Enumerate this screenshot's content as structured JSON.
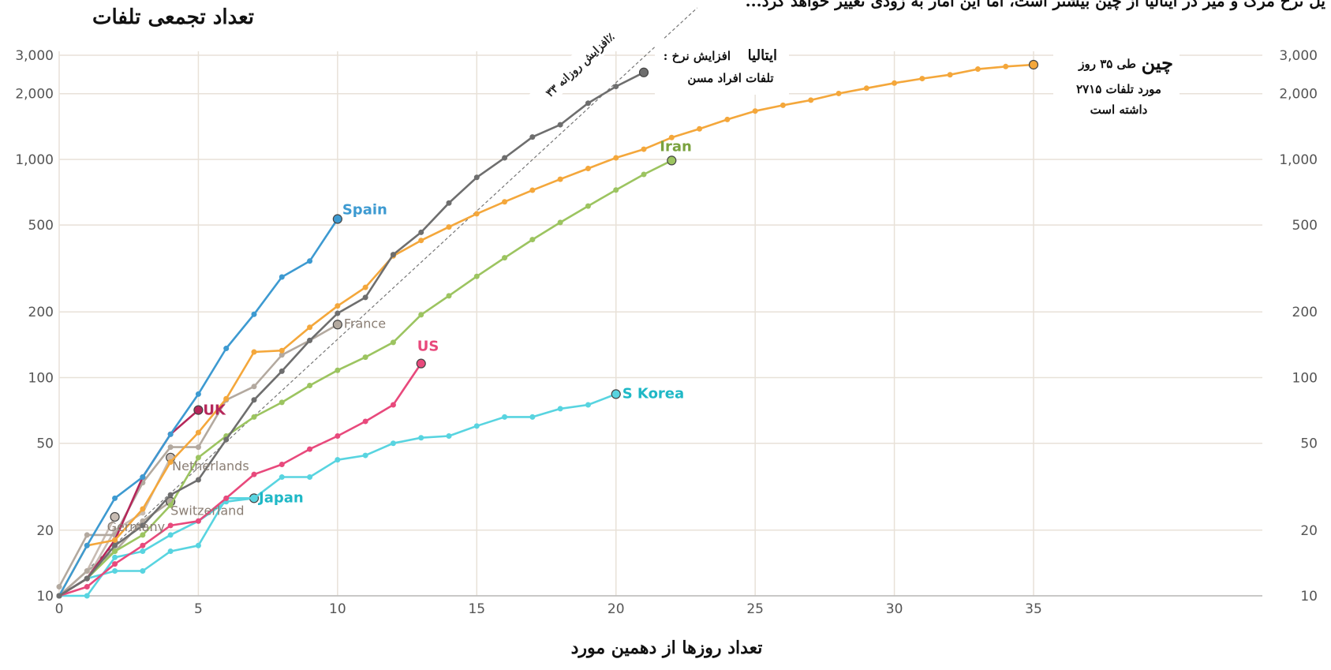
{
  "chart_data": {
    "type": "line",
    "title": "تعداد تجمعی تلفات",
    "top_caption": "...یل نرخ مرگ و میر در ایتالیا از چین بیشتر است، اما این آمار به زودی تغییر خواهد کرد",
    "xlabel": "تعداد روزها از دهمین مورد",
    "xlim": [
      0,
      35
    ],
    "ylim": [
      10,
      3000
    ],
    "y_scale": "log",
    "x_ticks": [
      0,
      5,
      10,
      15,
      20,
      25,
      30,
      35
    ],
    "x_tick_labels": [
      "0",
      "5",
      "10",
      "15",
      "20",
      "25",
      "30",
      "35"
    ],
    "y_ticks": [
      10,
      20,
      50,
      100,
      200,
      500,
      1000,
      2000,
      3000
    ],
    "y_tick_labels": [
      "10",
      "20",
      "50",
      "100",
      "200",
      "500",
      "1,000",
      "2,000",
      "3,000"
    ],
    "grid": true,
    "reference_line": {
      "label": "افزایش روزانه ۳۳٪",
      "x": [
        0,
        21.5
      ],
      "y": [
        10,
        3000
      ]
    },
    "annotations": {
      "china_title": "چین",
      "china_text_1": "طی ۳۵ روز",
      "china_text_2": "۲۷۱۵ مورد تلفات",
      "china_text_3": "داشته است",
      "italy_title": "ایتالیا",
      "italy_text_1": ": افزایش نرخ",
      "italy_text_2": "تلفات افراد مسن"
    },
    "series": [
      {
        "name": "",
        "color": "#f4a73b",
        "x": [
          0,
          1,
          2,
          3,
          4,
          5,
          6,
          7,
          8,
          9,
          10,
          11,
          12,
          13,
          14,
          15,
          16,
          17,
          18,
          19,
          20,
          21,
          22,
          23,
          24,
          25,
          26,
          27,
          28,
          29,
          30,
          31,
          32,
          33,
          34,
          35
        ],
        "y": [
          10,
          17,
          18,
          25,
          41,
          56,
          80,
          131,
          133,
          170,
          213,
          259,
          361,
          425,
          490,
          563,
          639,
          722,
          811,
          908,
          1016,
          1113,
          1259,
          1380,
          1523,
          1665,
          1770,
          1868,
          2004,
          2118,
          2236,
          2345,
          2442,
          2592,
          2663,
          2715
        ]
      },
      {
        "name": "",
        "color": "#6e6e6e",
        "x": [
          0,
          1,
          2,
          3,
          4,
          5,
          6,
          7,
          8,
          9,
          10,
          11,
          12,
          13,
          14,
          15,
          16,
          17,
          18,
          19,
          20,
          21
        ],
        "y": [
          10,
          12,
          17,
          21,
          29,
          34,
          52,
          79,
          107,
          148,
          197,
          233,
          366,
          463,
          631,
          827,
          1016,
          1266,
          1441,
          1809,
          2158,
          2503
        ]
      },
      {
        "name": "Spain",
        "color": "#3d9ad1",
        "x": [
          0,
          1,
          2,
          3,
          4,
          5,
          6,
          7,
          8,
          9,
          10
        ],
        "y": [
          10,
          17,
          28,
          35,
          55,
          84,
          136,
          195,
          289,
          342,
          533
        ]
      },
      {
        "name": "France",
        "color": "#b3a99f",
        "x": [
          0,
          1,
          2,
          3,
          4,
          5,
          6,
          7,
          8,
          9,
          10
        ],
        "y": [
          11,
          19,
          19,
          33,
          48,
          48,
          79,
          91,
          127,
          148,
          175
        ]
      },
      {
        "name": "Iran",
        "color": "#9cc460",
        "x": [
          0,
          1,
          2,
          3,
          4,
          5,
          6,
          7,
          8,
          9,
          10,
          11,
          12,
          13,
          14,
          15,
          16,
          17,
          18,
          19,
          20,
          21,
          22
        ],
        "y": [
          10,
          12,
          16,
          19,
          26,
          43,
          54,
          66,
          77,
          92,
          108,
          124,
          145,
          194,
          237,
          291,
          354,
          429,
          514,
          611,
          724,
          853,
          988
        ]
      },
      {
        "name": "US",
        "color": "#e8497c",
        "x": [
          0,
          1,
          2,
          3,
          4,
          5,
          6,
          7,
          8,
          9,
          10,
          11,
          12,
          13
        ],
        "y": [
          10,
          11,
          14,
          17,
          21,
          22,
          28,
          36,
          40,
          47,
          54,
          63,
          75,
          116
        ]
      },
      {
        "name": "S Korea",
        "color": "#58d4e0",
        "x": [
          0,
          1,
          2,
          3,
          4,
          5,
          6,
          7,
          8,
          9,
          10,
          11,
          12,
          13,
          14,
          15,
          16,
          17,
          18,
          19,
          20
        ],
        "y": [
          10,
          12,
          13,
          13,
          16,
          17,
          28,
          28,
          35,
          35,
          42,
          44,
          50,
          53,
          54,
          60,
          66,
          66,
          72,
          75,
          84
        ]
      },
      {
        "name": "UK",
        "color": "#b5275a",
        "x": [
          0,
          1,
          2,
          3,
          4,
          5
        ],
        "y": [
          10,
          12,
          18,
          35,
          55,
          71
        ]
      },
      {
        "name": "Netherlands",
        "color": "#c8bcb3",
        "x": [
          0,
          1,
          2,
          3,
          4
        ],
        "y": [
          10,
          12,
          20,
          24,
          43
        ]
      },
      {
        "name": "Germany",
        "color": "#c8bcb3",
        "x": [
          0,
          1,
          2
        ],
        "y": [
          10,
          13,
          23
        ]
      },
      {
        "name": "Switzerland",
        "color": "#b3a99f",
        "x": [
          0,
          1,
          2,
          3,
          4
        ],
        "y": [
          10,
          13,
          16,
          22,
          27
        ]
      },
      {
        "name": "Japan",
        "color": "#58d4e0",
        "x": [
          0,
          1,
          2,
          3,
          4,
          5,
          6,
          7
        ],
        "y": [
          10,
          10,
          15,
          16,
          19,
          22,
          27,
          28
        ]
      }
    ]
  }
}
